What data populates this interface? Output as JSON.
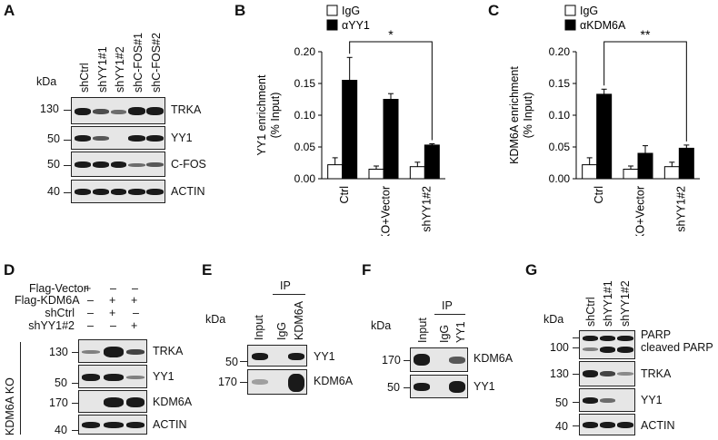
{
  "panel_letters": [
    "A",
    "B",
    "C",
    "D",
    "E",
    "F",
    "G"
  ],
  "panel_a": {
    "kda": "kDa",
    "lanes": [
      "shCtrl",
      "shYY1#1",
      "shYY1#2",
      "shC-FOS#1",
      "shC-FOS#2"
    ],
    "rows": [
      {
        "mw": "130",
        "label": "TRKA"
      },
      {
        "mw": "50",
        "label": "YY1"
      },
      {
        "mw": "50",
        "label": "C-FOS"
      },
      {
        "mw": "40",
        "label": "ACTIN"
      }
    ]
  },
  "chart_data": [
    {
      "type": "bar",
      "panel": "B",
      "categories": [
        "Ctrl",
        "KO+Vector",
        "shYY1#2"
      ],
      "series": [
        {
          "name": "IgG",
          "color": "#ffffff",
          "values": [
            0.022,
            0.015,
            0.019
          ],
          "errors": [
            0.011,
            0.005,
            0.007
          ]
        },
        {
          "name": "αYY1",
          "color": "#000000",
          "values": [
            0.155,
            0.125,
            0.053
          ],
          "errors": [
            0.036,
            0.009,
            0.002
          ]
        }
      ],
      "ylabel": "YY1 enrichment\n(% Input)",
      "ylim": [
        0,
        0.2
      ],
      "yticks": [
        "0.00",
        "0.05",
        "0.10",
        "0.15",
        "0.20"
      ],
      "significance": "*"
    },
    {
      "type": "bar",
      "panel": "C",
      "categories": [
        "Ctrl",
        "KO+Vector",
        "shYY1#2"
      ],
      "series": [
        {
          "name": "IgG",
          "color": "#ffffff",
          "values": [
            0.022,
            0.015,
            0.019
          ],
          "errors": [
            0.011,
            0.005,
            0.007
          ]
        },
        {
          "name": "αKDM6A",
          "color": "#000000",
          "values": [
            0.133,
            0.04,
            0.048
          ],
          "errors": [
            0.008,
            0.012,
            0.005
          ]
        }
      ],
      "ylabel": "KDM6A enrichment\n(% Input)",
      "ylim": [
        0,
        0.2
      ],
      "yticks": [
        "0.00",
        "0.05",
        "0.10",
        "0.15",
        "0.20"
      ],
      "significance": "**"
    }
  ],
  "panel_d": {
    "conditions": [
      {
        "label": "Flag-Vector",
        "signs": [
          "+",
          "–",
          "–"
        ]
      },
      {
        "label": "Flag-KDM6A",
        "signs": [
          "–",
          "+",
          "+"
        ]
      },
      {
        "label": "shCtrl",
        "signs": [
          "–",
          "+",
          "–"
        ]
      },
      {
        "label": "shYY1#2",
        "signs": [
          "–",
          "–",
          "+"
        ]
      }
    ],
    "side_label": "KDM6A KO",
    "rows": [
      {
        "mw": "130",
        "label": "TRKA"
      },
      {
        "mw": "50",
        "label": "YY1"
      },
      {
        "mw": "170",
        "label": "KDM6A"
      },
      {
        "mw": "40",
        "label": "ACTIN"
      }
    ]
  },
  "panel_e": {
    "kda": "kDa",
    "ip": "IP",
    "lanes": [
      "Input",
      "IgG",
      "KDM6A"
    ],
    "rows": [
      {
        "mw": "50",
        "label": "YY1"
      },
      {
        "mw": "170",
        "label": "KDM6A"
      }
    ]
  },
  "panel_f": {
    "kda": "kDa",
    "ip": "IP",
    "lanes": [
      "Input",
      "IgG",
      "YY1"
    ],
    "rows": [
      {
        "mw": "170",
        "label": "KDM6A"
      },
      {
        "mw": "50",
        "label": "YY1"
      }
    ]
  },
  "panel_g": {
    "kda": "kDa",
    "lanes": [
      "shCtrl",
      "shYY1#1",
      "shYY1#2"
    ],
    "rows": [
      {
        "mw": "100",
        "label": "PARP",
        "label2": "cleaved PARP"
      },
      {
        "mw": "130",
        "label": "TRKA"
      },
      {
        "mw": "50",
        "label": "YY1"
      },
      {
        "mw": "40",
        "label": "ACTIN"
      }
    ]
  }
}
